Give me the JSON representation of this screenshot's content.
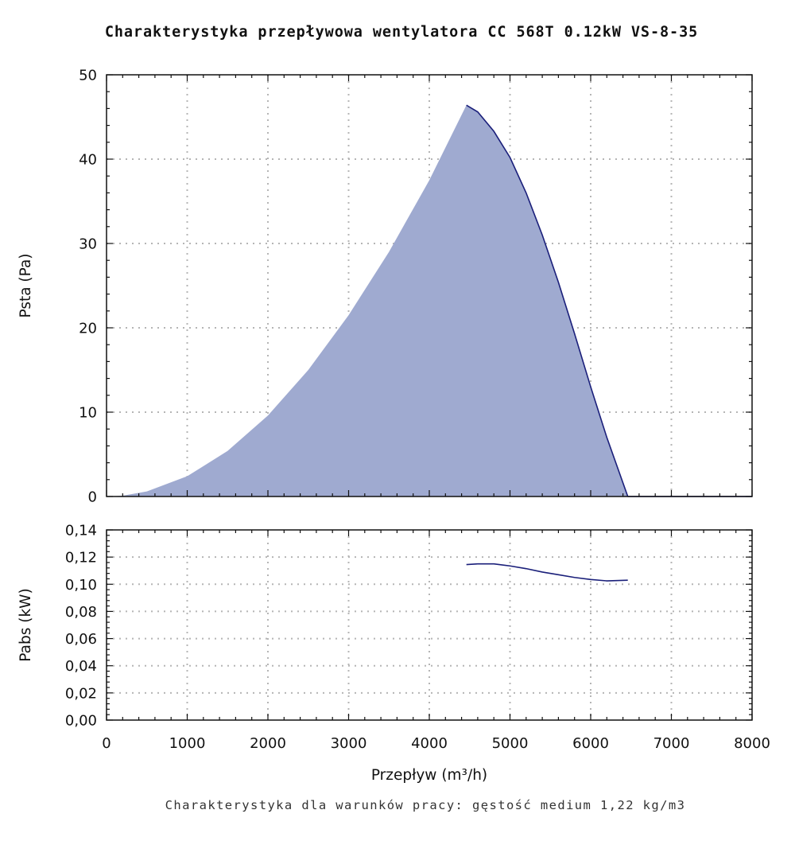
{
  "title": "Charakterystyka przepływowa wentylatora CC 568T 0.12kW VS-8-35",
  "footer": "Charakterystyka dla warunków pracy: gęstość medium 1,22 kg/m3",
  "colors": {
    "fill": "#9faad0",
    "line": "#1a1f7a",
    "grid": "#b5b5b5"
  },
  "chart_data": [
    {
      "type": "area",
      "ylabel": "Psta (Pa)",
      "xlim": [
        0,
        8000
      ],
      "ylim": [
        0,
        50
      ],
      "grid": true,
      "xticks": [
        0,
        1000,
        2000,
        3000,
        4000,
        5000,
        6000,
        7000,
        8000
      ],
      "yticks": [
        0,
        10,
        20,
        30,
        40,
        50
      ],
      "ytick_labels": [
        "0",
        "10",
        "20",
        "30",
        "40",
        "50"
      ],
      "shaded_area": {
        "x": [
          0,
          200,
          500,
          1000,
          1500,
          2000,
          2500,
          3000,
          3500,
          4000,
          4460
        ],
        "y": [
          0,
          0.1,
          0.6,
          2.4,
          5.4,
          9.6,
          15.0,
          21.5,
          29.0,
          37.5,
          46.4
        ]
      },
      "series": [
        {
          "x": [
            4460,
            4600,
            4800,
            5000,
            5200,
            5400,
            5600,
            5800,
            6000,
            6200,
            6460
          ],
          "y": [
            46.4,
            45.6,
            43.3,
            40.2,
            36.0,
            31.0,
            25.4,
            19.3,
            13.0,
            7.0,
            0
          ]
        },
        {
          "x": [
            6460,
            8000
          ],
          "y": [
            0,
            0
          ]
        }
      ]
    },
    {
      "type": "line",
      "xlabel": "Przepływ (m³/h)",
      "ylabel": "Pabs (kW)",
      "xlim": [
        0,
        8000
      ],
      "ylim": [
        0,
        0.14
      ],
      "grid": true,
      "xticks": [
        0,
        1000,
        2000,
        3000,
        4000,
        5000,
        6000,
        7000,
        8000
      ],
      "xtick_labels": [
        "0",
        "1000",
        "2000",
        "3000",
        "4000",
        "5000",
        "6000",
        "7000",
        "8000"
      ],
      "yticks": [
        0,
        0.02,
        0.04,
        0.06,
        0.08,
        0.1,
        0.12,
        0.14
      ],
      "ytick_labels": [
        "0,00",
        "0,02",
        "0,04",
        "0,06",
        "0,08",
        "0,10",
        "0,12",
        "0,14"
      ],
      "series": [
        {
          "x": [
            4460,
            4600,
            4800,
            5000,
            5200,
            5400,
            5600,
            5800,
            6000,
            6200,
            6460
          ],
          "y": [
            0.1145,
            0.115,
            0.115,
            0.1135,
            0.1115,
            0.109,
            0.107,
            0.105,
            0.1035,
            0.1025,
            0.103
          ]
        }
      ]
    }
  ]
}
